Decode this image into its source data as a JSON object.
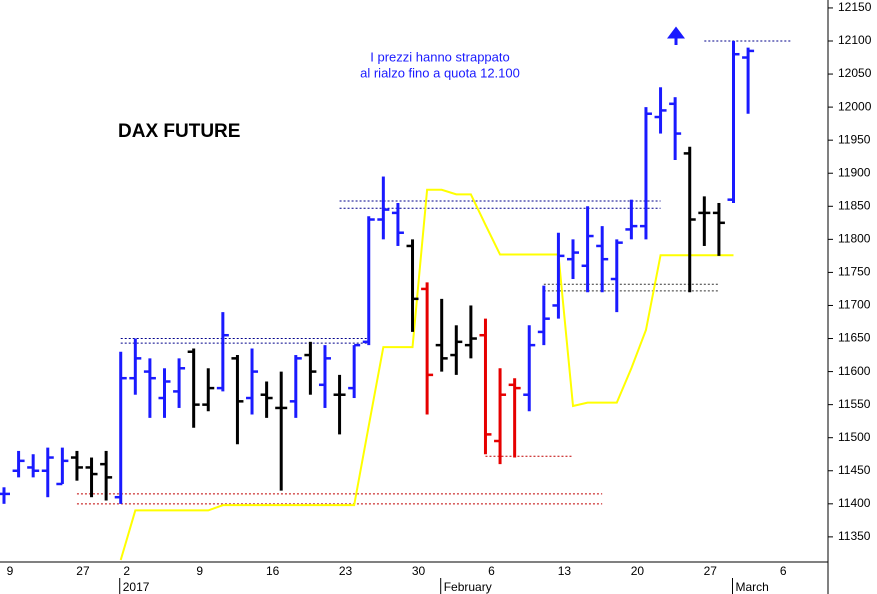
{
  "chart_data": {
    "type": "ohlc",
    "title": "DAX FUTURE",
    "annotation": [
      "I prezzi hanno strappato",
      "al rialzo fino a quota 12.100"
    ],
    "categories": [
      "9",
      null,
      null,
      null,
      null,
      "27",
      null,
      null,
      "2",
      null,
      null,
      null,
      null,
      "9",
      null,
      null,
      null,
      null,
      "16",
      null,
      null,
      null,
      null,
      "23",
      null,
      null,
      null,
      null,
      "30",
      null,
      null,
      null,
      null,
      "6",
      null,
      null,
      null,
      null,
      "13",
      null,
      null,
      null,
      null,
      "20",
      null,
      null,
      null,
      null,
      "27",
      null,
      null,
      null,
      null,
      "6"
    ],
    "period_labels": [
      null,
      null,
      null,
      null,
      null,
      null,
      null,
      null,
      "2017",
      null,
      null,
      null,
      null,
      null,
      null,
      null,
      null,
      null,
      null,
      null,
      null,
      null,
      null,
      null,
      null,
      null,
      null,
      null,
      null,
      null,
      "February",
      null,
      null,
      null,
      null,
      null,
      null,
      null,
      null,
      null,
      null,
      null,
      null,
      null,
      null,
      null,
      null,
      null,
      null,
      null,
      "March",
      null,
      null,
      null
    ],
    "open": [
      11415,
      11450,
      11455,
      11450,
      11430,
      11470,
      11455,
      11460,
      11410,
      11590,
      11600,
      11560,
      11570,
      11630,
      11550,
      11575,
      11620,
      11560,
      11565,
      11545,
      11555,
      11625,
      11580,
      11565,
      11575,
      11645,
      11830,
      11840,
      11790,
      11725,
      11640,
      11625,
      11640,
      11655,
      11495,
      11580,
      11565,
      11660,
      11700,
      11770,
      11760,
      11790,
      11740,
      11815,
      11820,
      11985,
      12005,
      11930,
      11840,
      11840,
      11860,
      12075,
      null,
      null
    ],
    "high": [
      11425,
      11480,
      11475,
      11485,
      11485,
      11480,
      11470,
      11480,
      11630,
      11650,
      11620,
      11605,
      11620,
      11635,
      11605,
      11690,
      11625,
      11635,
      11585,
      11600,
      11625,
      11645,
      11640,
      11595,
      11640,
      11835,
      11895,
      11855,
      11800,
      11735,
      11710,
      11670,
      11700,
      11680,
      11605,
      11590,
      11670,
      11730,
      11810,
      11800,
      11850,
      11820,
      11800,
      11860,
      12000,
      12030,
      12015,
      11940,
      11865,
      11855,
      12100,
      12090,
      null,
      null
    ],
    "low": [
      11400,
      11440,
      11440,
      11410,
      11430,
      11435,
      11410,
      11405,
      11400,
      11565,
      11530,
      11530,
      11545,
      11515,
      11540,
      11570,
      11490,
      11535,
      11530,
      11420,
      11530,
      11565,
      11545,
      11505,
      11560,
      11640,
      11800,
      11790,
      11660,
      11535,
      11600,
      11595,
      11620,
      11475,
      11460,
      11470,
      11540,
      11640,
      11680,
      11740,
      11720,
      11720,
      11690,
      11800,
      11800,
      11960,
      11920,
      11720,
      11790,
      11775,
      11855,
      11990,
      null,
      null
    ],
    "close": [
      11415,
      11465,
      11450,
      11470,
      11465,
      11455,
      11445,
      11440,
      11590,
      11620,
      11590,
      11585,
      11605,
      11550,
      11575,
      11655,
      11555,
      11600,
      11560,
      11545,
      11620,
      11600,
      11620,
      11565,
      11640,
      11830,
      11845,
      11810,
      11710,
      11595,
      11620,
      11645,
      11650,
      11505,
      11565,
      11575,
      11640,
      11680,
      11775,
      11780,
      11805,
      11770,
      11795,
      11820,
      11990,
      11995,
      11960,
      11830,
      11840,
      11825,
      12080,
      12085,
      null,
      null
    ],
    "colors": [
      "#1a1aff",
      "#1a1aff",
      "#1a1aff",
      "#1a1aff",
      "#1a1aff",
      "#000000",
      "#000000",
      "#000000",
      "#1a1aff",
      "#1a1aff",
      "#1a1aff",
      "#1a1aff",
      "#1a1aff",
      "#000000",
      "#000000",
      "#1a1aff",
      "#000000",
      "#1a1aff",
      "#000000",
      "#000000",
      "#1a1aff",
      "#000000",
      "#1a1aff",
      "#000000",
      "#1a1aff",
      "#1a1aff",
      "#1a1aff",
      "#1a1aff",
      "#000000",
      "#e60000",
      "#000000",
      "#000000",
      "#000000",
      "#e60000",
      "#e60000",
      "#e60000",
      "#1a1aff",
      "#1a1aff",
      "#1a1aff",
      "#1a1aff",
      "#1a1aff",
      "#1a1aff",
      "#1a1aff",
      "#1a1aff",
      "#1a1aff",
      "#1a1aff",
      "#1a1aff",
      "#000000",
      "#000000",
      "#000000",
      "#1a1aff",
      "#1a1aff",
      null,
      null
    ],
    "line": {
      "color": "#ffff00",
      "values": [
        null,
        null,
        null,
        null,
        null,
        null,
        null,
        null,
        11315,
        11390,
        11390,
        11390,
        11390,
        11390,
        11390,
        11398,
        11398,
        11398,
        11398,
        11398,
        11398,
        11398,
        11398,
        11398,
        11398,
        11518,
        11637,
        11637,
        11637,
        11875,
        11875,
        11868,
        11868,
        11822,
        11777,
        11777,
        11777,
        11777,
        11777,
        11548,
        11553,
        11553,
        11553,
        11605,
        11663,
        11776,
        11776,
        11776,
        11776,
        11776,
        11776,
        null,
        null,
        null
      ]
    },
    "levels": [
      {
        "value": 12100,
        "from": 48,
        "to": 54,
        "color": "#00008b"
      },
      {
        "value": 11858,
        "from": 23,
        "to": 45,
        "color": "#00008b"
      },
      {
        "value": 11847,
        "from": 23,
        "to": 45,
        "color": "#00008b"
      },
      {
        "value": 11650,
        "from": 8,
        "to": 25,
        "color": "#00008b"
      },
      {
        "value": 11643,
        "from": 8,
        "to": 25,
        "color": "#00008b"
      },
      {
        "value": 11732,
        "from": 37,
        "to": 49,
        "color": "#333333"
      },
      {
        "value": 11722,
        "from": 37,
        "to": 49,
        "color": "#333333"
      },
      {
        "value": 11472,
        "from": 33,
        "to": 39,
        "color": "#c00000"
      },
      {
        "value": 11415,
        "from": 5,
        "to": 41,
        "color": "#c00000"
      },
      {
        "value": 11400,
        "from": 5,
        "to": 41,
        "color": "#c00000"
      }
    ],
    "ylim": [
      11312,
      12162
    ],
    "yticks": [
      11350,
      11400,
      11450,
      11500,
      11550,
      11600,
      11650,
      11700,
      11750,
      11800,
      11850,
      11900,
      11950,
      12000,
      12050,
      12100,
      12150
    ]
  }
}
